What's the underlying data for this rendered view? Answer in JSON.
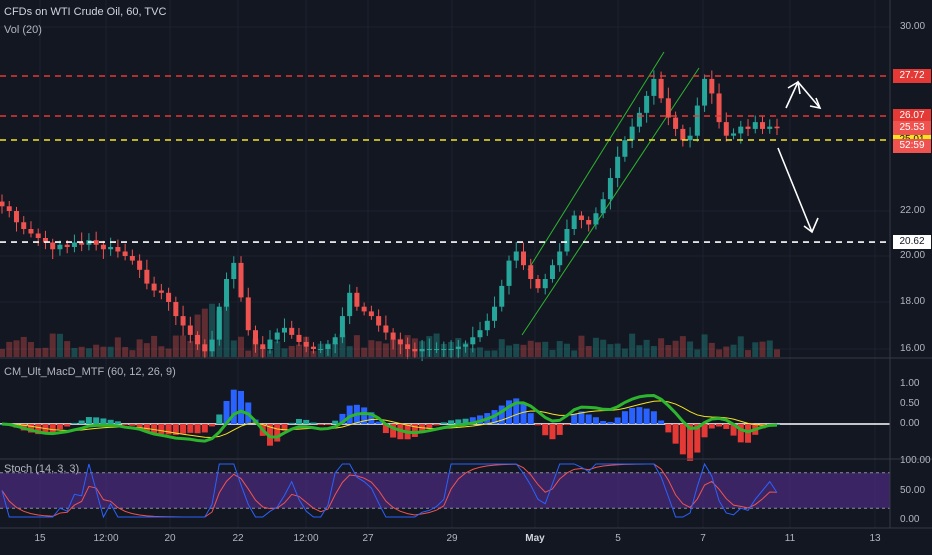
{
  "header": {
    "title": "CFDs on WTI Crude Oil, 60, TVC",
    "volume_label": "Vol (20)",
    "macd_label": "CM_Ult_MacD_MTF (60, 12, 26, 9)",
    "stoch_label": "Stoch (14, 3, 3)"
  },
  "colors": {
    "background": "#131722",
    "up": "#26a69a",
    "down": "#ef5350",
    "resistance": "#e53935",
    "support_yellow": "#f5e51f",
    "support_white": "#ffffff",
    "channel": "#2db52d",
    "stoch_band": "#4a2a7a"
  },
  "chart_data": [
    {
      "type": "candlestick",
      "title": "CFDs on WTI Crude Oil, 60, TVC",
      "y_ticks": [
        16.0,
        18.0,
        20.0,
        22.0,
        30.0
      ],
      "ylim": [
        15.8,
        30.4
      ],
      "x_ticks": [
        "15",
        "12:00",
        "20",
        "22",
        "12:00",
        "27",
        "29",
        "May",
        "5",
        "7",
        "11",
        "13"
      ],
      "horizontal_levels": [
        {
          "label": "27.72",
          "value": 27.72,
          "style": "dashed",
          "color": "#e53935"
        },
        {
          "label": "26.07",
          "value": 26.07,
          "style": "dashed",
          "color": "#e53935"
        },
        {
          "label": "25.01",
          "value": 25.01,
          "style": "dashed",
          "color": "#f5e51f"
        },
        {
          "label": "20.62",
          "value": 20.62,
          "style": "dashed",
          "color": "#ffffff"
        }
      ],
      "price_tags": [
        {
          "label": "25.53",
          "value": 25.53
        },
        {
          "label": "52:59",
          "value": 25.1
        }
      ],
      "closes": [
        22.2,
        22.0,
        21.5,
        21.2,
        21.0,
        20.8,
        20.6,
        20.3,
        20.5,
        20.4,
        20.6,
        20.5,
        20.7,
        20.5,
        20.3,
        20.4,
        20.2,
        20.0,
        19.8,
        19.4,
        18.8,
        18.5,
        18.4,
        18.0,
        17.4,
        17.0,
        16.6,
        16.2,
        15.9,
        16.4,
        17.8,
        19.0,
        19.7,
        18.2,
        16.8,
        16.2,
        16.0,
        16.4,
        16.7,
        16.9,
        16.6,
        16.3,
        16.1,
        16.0,
        16.0,
        16.2,
        16.5,
        17.4,
        18.4,
        17.8,
        17.6,
        17.4,
        17.0,
        16.7,
        16.4,
        16.2,
        16.0,
        15.9,
        16.0,
        16.0,
        16.0,
        16.0,
        16.0,
        16.1,
        16.2,
        16.5,
        16.8,
        17.2,
        17.8,
        18.7,
        19.8,
        20.2,
        19.6,
        19.0,
        18.6,
        19.0,
        19.6,
        20.2,
        21.2,
        21.8,
        21.6,
        21.4,
        21.9,
        22.5,
        23.4,
        24.3,
        25.0,
        25.6,
        26.2,
        26.9,
        27.6,
        26.8,
        26.0,
        25.5,
        25.0,
        25.2,
        26.5,
        27.6,
        27.0,
        25.8,
        25.2,
        25.3,
        25.6,
        25.5,
        25.8,
        25.5,
        25.6,
        25.53
      ],
      "projection_arrows": [
        {
          "from": [
            26.2,
            24.8
          ],
          "label": "down-to-20.62"
        },
        {
          "from": [
            26.6,
            27.3
          ],
          "label": "up-to-27.72"
        }
      ]
    },
    {
      "type": "line",
      "title": "CM_Ult_MacD_MTF (60, 12, 26, 9)",
      "y_ticks": [
        1.0,
        0.5,
        0.0
      ],
      "ylim": [
        -0.5,
        1.3
      ],
      "zero_line": 0.0
    },
    {
      "type": "line",
      "title": "Stoch (14, 3, 3)",
      "y_ticks": [
        100.0,
        50.0,
        0.0
      ],
      "ylim": [
        -5,
        105
      ],
      "band": [
        20,
        80
      ]
    }
  ]
}
